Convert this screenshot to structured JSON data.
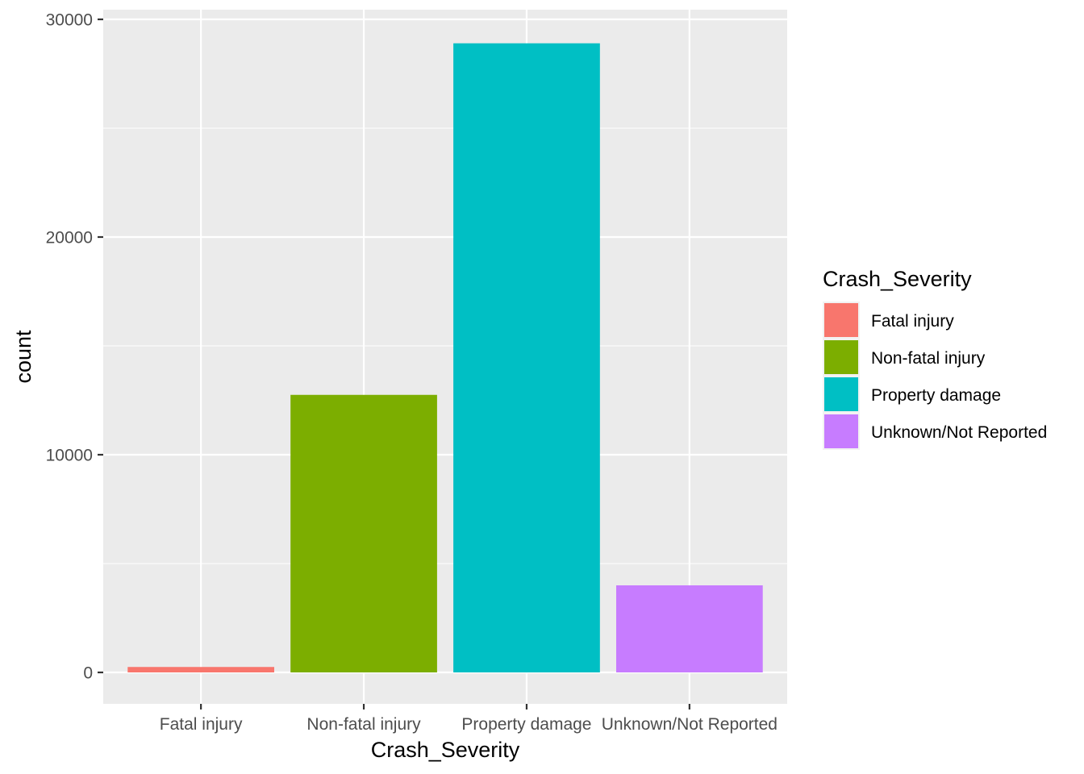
{
  "chart_data": {
    "type": "bar",
    "title": "",
    "xlabel": "Crash_Severity",
    "ylabel": "count",
    "categories": [
      "Fatal injury",
      "Non-fatal injury",
      "Property damage",
      "Unknown/Not Reported"
    ],
    "values": [
      250,
      12750,
      28900,
      4000
    ],
    "colors": [
      "#F8766D",
      "#7CAE00",
      "#00BFC4",
      "#C77CFF"
    ],
    "ylim": [
      0,
      30000
    ],
    "y_ticks": [
      0,
      10000,
      20000,
      30000
    ],
    "y_tick_labels": [
      "0",
      "10000",
      "20000",
      "30000"
    ],
    "grid": true,
    "panel_background": "#EBEBEB",
    "grid_color": "#FFFFFF",
    "legend": {
      "title": "Crash_Severity",
      "placement": "right",
      "entries": [
        "Fatal injury",
        "Non-fatal injury",
        "Property damage",
        "Unknown/Not Reported"
      ]
    }
  }
}
